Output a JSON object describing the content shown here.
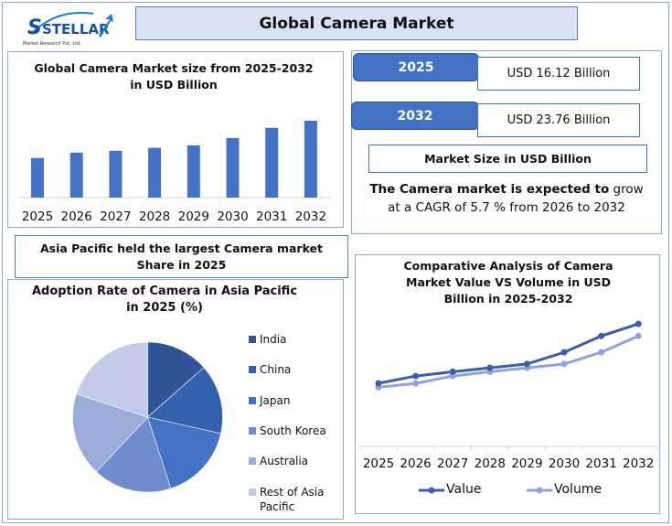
{
  "logo": {
    "name": "STELLAR",
    "subtitle": "Market Research Pvt. Ltd."
  },
  "header": {
    "title": "Global Camera Market"
  },
  "summary": {
    "items": [
      {
        "year": "2025",
        "value": "USD 16.12 Billion"
      },
      {
        "year": "2032",
        "value": "USD 23.76 Billion"
      }
    ],
    "caption": "Market Size in USD Billion",
    "cagr_bold": "The Camera market is expected to",
    "cagr_rest": " grow at a CAGR of 5.7 % from 2026 to 2032"
  },
  "region_note": "Asia Pacific held the largest Camera market Share in 2025",
  "colors": {
    "accent": "#4472c4",
    "title_bg": "#dae3f3",
    "value": "#3a5fa8",
    "volume": "#8fa3dc"
  },
  "chart_data": [
    {
      "type": "bar",
      "title": "Global Camera Market size from 2025-2032 in USD Billion",
      "categories": [
        "2025",
        "2026",
        "2027",
        "2028",
        "2029",
        "2030",
        "2031",
        "2032"
      ],
      "values": [
        16.12,
        17.2,
        17.6,
        18.2,
        18.7,
        20.2,
        22.3,
        23.76
      ],
      "xlabel": "",
      "ylabel": "",
      "ylim": [
        8,
        26
      ],
      "grid": false,
      "color": "#4472c4"
    },
    {
      "type": "pie",
      "title": "Adoption Rate of Camera in Asia Pacific in 2025 (%)",
      "categories": [
        "India",
        "China",
        "Japan",
        "South Korea",
        "Australia",
        "Rest of Asia Pacific"
      ],
      "values": [
        13.5,
        15,
        16.5,
        17,
        18,
        20
      ],
      "colors": [
        "#2f5597",
        "#3461ad",
        "#4472c4",
        "#6f8ccf",
        "#9dadd9",
        "#c2cbe7"
      ],
      "legend": "right"
    },
    {
      "type": "line",
      "title": "Comparative Analysis of Camera Market Value VS Volume in USD Billion  in 2025-2032",
      "categories": [
        "2025",
        "2026",
        "2027",
        "2028",
        "2029",
        "2030",
        "2031",
        "2032"
      ],
      "series": [
        {
          "name": "Value",
          "values": [
            16.12,
            17.05,
            17.6,
            18.1,
            18.6,
            20.1,
            22.2,
            23.76
          ]
        },
        {
          "name": "Volume",
          "values": [
            15.6,
            16.1,
            17.05,
            17.6,
            18.1,
            18.6,
            20.1,
            22.2
          ]
        }
      ],
      "ylim": [
        8,
        26
      ],
      "grid": false,
      "legend": "bottom"
    }
  ]
}
